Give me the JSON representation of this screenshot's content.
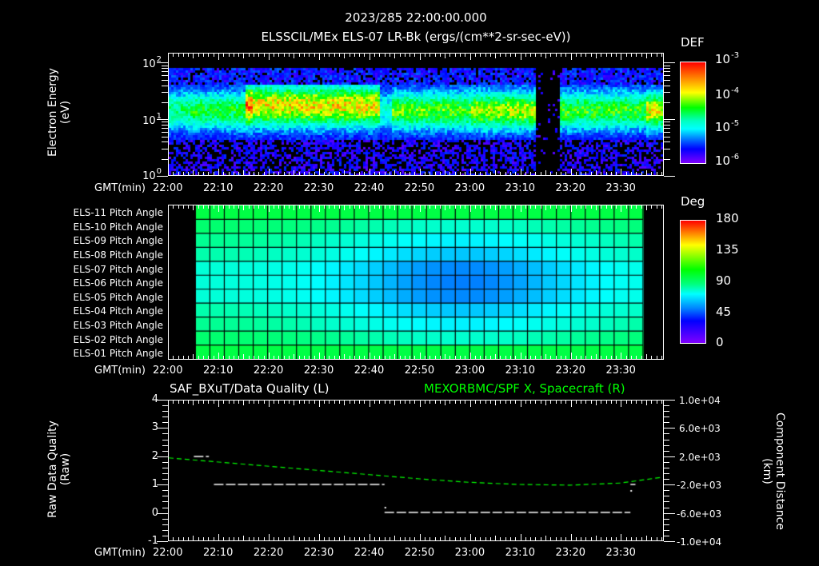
{
  "header": {
    "datetime": "2023/285 22:00:00.000",
    "subtitle": "ELSSCIL/MEx ELS-07 LR-Bk  (ergs/(cm**2-sr-sec-eV))"
  },
  "time_axis": {
    "prefix": "GMT(min)",
    "labels": [
      "22:00",
      "22:10",
      "22:20",
      "22:30",
      "22:40",
      "22:50",
      "23:00",
      "23:10",
      "23:20",
      "23:30"
    ]
  },
  "panel_energy": {
    "ylabel": "Electron Energy",
    "yunit": "(eV)",
    "yticks": [
      {
        "base": "10",
        "exp": "2"
      },
      {
        "base": "10",
        "exp": "1"
      },
      {
        "base": "10",
        "exp": "0"
      }
    ],
    "colorbar": {
      "title": "DEF",
      "labels": [
        {
          "base": "10",
          "exp": "-3"
        },
        {
          "base": "10",
          "exp": "-4"
        },
        {
          "base": "10",
          "exp": "-5"
        },
        {
          "base": "10",
          "exp": "-6"
        }
      ]
    }
  },
  "panel_pitch": {
    "rows": [
      "ELS-11 Pitch Angle",
      "ELS-10 Pitch Angle",
      "ELS-09 Pitch Angle",
      "ELS-08 Pitch Angle",
      "ELS-07 Pitch Angle",
      "ELS-06 Pitch Angle",
      "ELS-05 Pitch Angle",
      "ELS-04 Pitch Angle",
      "ELS-03 Pitch Angle",
      "ELS-02 Pitch Angle",
      "ELS-01 Pitch Angle"
    ],
    "colorbar": {
      "title": "Deg",
      "labels": [
        "180",
        "135",
        "90",
        "45",
        "0"
      ]
    }
  },
  "panel_quality": {
    "left_title": "SAF_BXuT/Data Quality (L)",
    "right_title": "MEXORBMC/SPF X, Spacecraft (R)",
    "ylabel_left": "Raw Data Quality",
    "yunit_left": "(Raw)",
    "yticks_left": [
      "4",
      "3",
      "2",
      "1",
      "0",
      "-1"
    ],
    "ylabel_right": "Component Distance",
    "yunit_right": "(km)",
    "yticks_right": [
      "1.0e+04",
      "6.0e+03",
      "2.0e+03",
      "-2.0e+03",
      "-6.0e+03",
      "-1.0e+04"
    ]
  },
  "colors": {
    "background": "#000000",
    "axis": "#ffffff",
    "spacecraft_line": "#00ff00",
    "quality_line": "#ffffff"
  },
  "chart_data": [
    {
      "type": "heatmap",
      "title": "ELSSCIL/MEx ELS-07 LR-Bk (ergs/(cm**2-sr-sec-eV))",
      "xlabel": "GMT(min)",
      "ylabel": "Electron Energy (eV)",
      "x_range": [
        "22:00",
        "23:38"
      ],
      "y_scale": "log",
      "ylim": [
        1,
        150
      ],
      "colorbar": {
        "label": "DEF",
        "scale": "log",
        "range": [
          1e-06,
          0.001
        ]
      },
      "features": [
        {
          "time": "22:00-22:15",
          "energy_eV": "~8-20",
          "level": "~1e-5"
        },
        {
          "time": "22:15-22:42",
          "energy_eV": "~8-30",
          "level": "~1e-4 to 3e-4 (peak near 22:16)"
        },
        {
          "time": "22:44-23:13",
          "energy_eV": "~8-25",
          "level": "~3e-5 to 1e-4"
        },
        {
          "time": "23:13-23:17",
          "energy_eV": "all",
          "level": "no signal (gap)"
        },
        {
          "time": "23:17-23:38",
          "energy_eV": "~8-25",
          "level": "~2e-5 to 8e-5, brighter at 23:37"
        }
      ]
    },
    {
      "type": "heatmap",
      "title": "ELS Pitch Angle",
      "xlabel": "GMT(min)",
      "categories": [
        "ELS-11",
        "ELS-10",
        "ELS-09",
        "ELS-08",
        "ELS-07",
        "ELS-06",
        "ELS-05",
        "ELS-04",
        "ELS-03",
        "ELS-02",
        "ELS-01"
      ],
      "x_range": [
        "22:05",
        "23:33"
      ],
      "colorbar": {
        "label": "Deg",
        "range": [
          0,
          180
        ]
      },
      "summary": "Values ~95-110 deg at edges (ELS-11, ELS-01), minimum ~55 deg for ELS-06/07 around 23:00-23:08"
    },
    {
      "type": "line",
      "title": "SAF_BXuT/Data Quality (L) & MEXORBMC/SPF X, Spacecraft (R)",
      "xlabel": "GMT(min)",
      "series": [
        {
          "name": "Data Quality (L)",
          "axis": "left",
          "ylim": [
            -1,
            4
          ],
          "points": [
            [
              "22:05",
              2
            ],
            [
              "22:08",
              2
            ],
            [
              "22:08",
              1
            ],
            [
              "22:43",
              1
            ],
            [
              "22:43",
              0
            ],
            [
              "23:32",
              0
            ],
            [
              "23:32",
              1
            ]
          ]
        },
        {
          "name": "SPF X Spacecraft (R)",
          "axis": "right",
          "ylim": [
            -10000,
            10000
          ],
          "unit": "km",
          "points": [
            [
              "22:00",
              1800
            ],
            [
              "22:10",
              1200
            ],
            [
              "22:20",
              600
            ],
            [
              "22:30",
              0
            ],
            [
              "22:40",
              -600
            ],
            [
              "22:50",
              -1200
            ],
            [
              "23:00",
              -1700
            ],
            [
              "23:10",
              -2000
            ],
            [
              "23:20",
              -2100
            ],
            [
              "23:30",
              -1800
            ],
            [
              "23:38",
              -1000
            ]
          ]
        }
      ]
    }
  ]
}
